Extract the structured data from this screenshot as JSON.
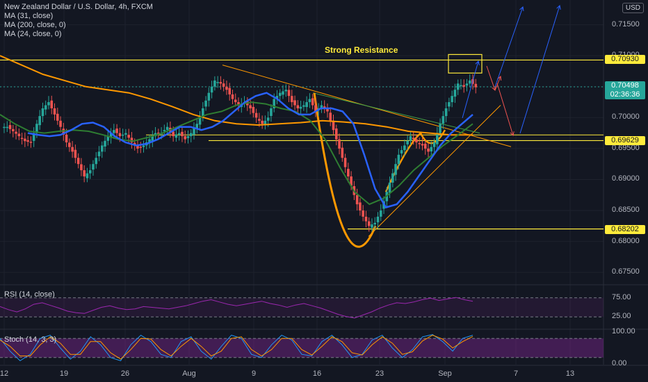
{
  "legend": {
    "symbol": "New Zealand Dollar / U.S. Dollar, 4h, FXCM",
    "ma1": "MA (31, close)",
    "ma2": "MA (200, close, 0)",
    "ma3": "MA (24, close, 0)"
  },
  "currency_button": "USD",
  "annotation": "Strong Resistance",
  "price_tags": {
    "resistance": "0.70930",
    "last_price": "0.70498",
    "countdown": "02:36:36",
    "support_mid": "0.69629",
    "support_low": "0.68202"
  },
  "colors": {
    "background": "#131722",
    "candle_up": "#26a69a",
    "candle_down": "#ef5350",
    "ma31": "#2962ff",
    "ma200": "#ff9800",
    "ma24": "#1b5e20",
    "level": "#ffeb3b",
    "rsi": "#9c27b0",
    "stoch_k": "#2196f3",
    "stoch_d": "#ff9800"
  },
  "chart_data": {
    "type": "candlestick",
    "title": "New Zealand Dollar / U.S. Dollar, 4h, FXCM",
    "xlabel": "",
    "ylabel": "",
    "x_ticks": [
      "12",
      "19",
      "26",
      "Aug",
      "9",
      "16",
      "23",
      "Sep",
      "7",
      "13"
    ],
    "y_ticks": [
      "0.71500",
      "0.71000",
      "0.70500",
      "0.70000",
      "0.69500",
      "0.69000",
      "0.68500",
      "0.68000",
      "0.67500"
    ],
    "ylim": [
      0.673,
      0.719
    ],
    "close_path": [
      0.6985,
      0.6978,
      0.697,
      0.6962,
      0.696,
      0.699,
      0.7015,
      0.7025,
      0.7005,
      0.6985,
      0.696,
      0.6945,
      0.6925,
      0.6905,
      0.6915,
      0.6935,
      0.6955,
      0.697,
      0.698,
      0.697,
      0.6975,
      0.696,
      0.695,
      0.6955,
      0.6965,
      0.6975,
      0.6975,
      0.6985,
      0.697,
      0.6975,
      0.6965,
      0.6975,
      0.699,
      0.7015,
      0.704,
      0.706,
      0.7055,
      0.7045,
      0.703,
      0.702,
      0.7025,
      0.7015,
      0.7,
      0.699,
      0.7,
      0.703,
      0.704,
      0.7045,
      0.7025,
      0.7015,
      0.702,
      0.703,
      0.701,
      0.702,
      0.701,
      0.698,
      0.695,
      0.692,
      0.689,
      0.686,
      0.684,
      0.6825,
      0.683,
      0.685,
      0.688,
      0.691,
      0.694,
      0.6955,
      0.697,
      0.696,
      0.6955,
      0.6945,
      0.696,
      0.699,
      0.7015,
      0.7035,
      0.7055,
      0.705,
      0.706,
      0.7049
    ],
    "last_price": 0.70498,
    "levels": [
      0.7093,
      0.69629,
      0.68202
    ],
    "ma31": [
      0.6975,
      0.6972,
      0.697,
      0.6972,
      0.698,
      0.699,
      0.6992,
      0.6985,
      0.697,
      0.696,
      0.6955,
      0.6958,
      0.6965,
      0.6975,
      0.6985,
      0.6985,
      0.698,
      0.6985,
      0.6995,
      0.701,
      0.7025,
      0.7035,
      0.704,
      0.703,
      0.7015,
      0.7005,
      0.7005,
      0.7015,
      0.7015,
      0.701,
      0.699,
      0.694,
      0.6885,
      0.6855,
      0.686,
      0.688,
      0.6905,
      0.693,
      0.6955,
      0.6975,
      0.699,
      0.7005
    ],
    "ma200": [
      0.71,
      0.7085,
      0.707,
      0.706,
      0.705,
      0.7045,
      0.704,
      0.703,
      0.7018,
      0.7005,
      0.6995,
      0.699,
      0.6988,
      0.699,
      0.6992,
      0.6995,
      0.6993,
      0.699,
      0.6985,
      0.6978,
      0.6975,
      0.6972,
      0.6972
    ],
    "ma24": [
      0.7005,
      0.699,
      0.6978,
      0.6975,
      0.6978,
      0.698,
      0.6978,
      0.6972,
      0.6965,
      0.6962,
      0.6968,
      0.6975,
      0.6985,
      0.6995,
      0.7005,
      0.701,
      0.702,
      0.7025,
      0.7022,
      0.7015,
      0.701,
      0.6995,
      0.6965,
      0.692,
      0.688,
      0.686,
      0.687,
      0.689,
      0.6915,
      0.6935,
      0.6955,
      0.6972,
      0.699
    ],
    "rsi": {
      "label": "RSI (14, close)",
      "ticks": [
        "75.00",
        "25.00"
      ],
      "ylim": [
        0,
        100
      ],
      "values": [
        52,
        44,
        38,
        46,
        58,
        62,
        55,
        48,
        40,
        36,
        34,
        42,
        50,
        54,
        48,
        44,
        46,
        52,
        50,
        48,
        46,
        50,
        54,
        60,
        66,
        70,
        64,
        58,
        54,
        58,
        62,
        66,
        60,
        56,
        50,
        56,
        60,
        54,
        48,
        40,
        32,
        26,
        22,
        30,
        38,
        48,
        56,
        62,
        60,
        64,
        70,
        74,
        68,
        72,
        76,
        70,
        66
      ]
    },
    "stoch": {
      "label": "Stoch (14, 3, 3)",
      "ticks": [
        "100.00",
        "0.00"
      ],
      "ylim": [
        0,
        100
      ],
      "k": [
        80,
        40,
        10,
        30,
        80,
        90,
        50,
        15,
        40,
        85,
        60,
        20,
        10,
        60,
        90,
        70,
        30,
        20,
        70,
        85,
        40,
        15,
        55,
        90,
        80,
        30,
        20,
        60,
        90,
        75,
        30,
        25,
        70,
        90,
        60,
        20,
        30,
        75,
        90,
        50,
        20,
        45,
        85,
        92,
        70,
        40,
        80,
        90
      ],
      "d": [
        75,
        55,
        25,
        25,
        60,
        85,
        65,
        30,
        30,
        70,
        70,
        35,
        15,
        45,
        80,
        78,
        45,
        25,
        55,
        80,
        55,
        25,
        40,
        80,
        85,
        45,
        25,
        45,
        80,
        80,
        45,
        28,
        55,
        85,
        70,
        35,
        28,
        60,
        85,
        65,
        30,
        38,
        72,
        90,
        78,
        50,
        70,
        86
      ]
    }
  }
}
